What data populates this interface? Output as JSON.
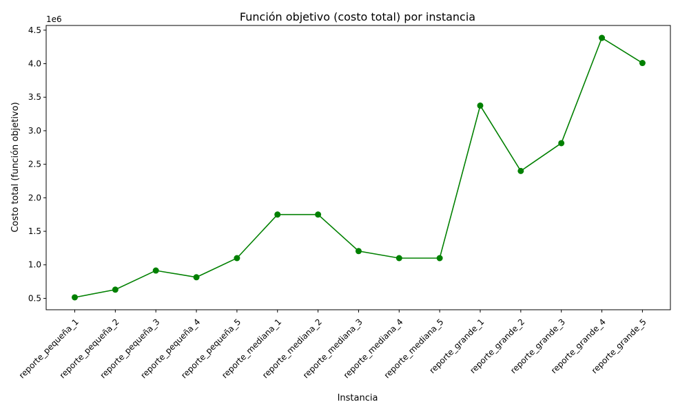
{
  "chart_data": {
    "type": "line",
    "title": "Función objetivo (costo total) por instancia",
    "xlabel": "Instancia",
    "ylabel": "Costo total (función objetivo)",
    "offset_label": "1e6",
    "categories": [
      "reporte_pequeña_1",
      "reporte_pequeña_2",
      "reporte_pequeña_3",
      "reporte_pequeña_4",
      "reporte_pequeña_5",
      "reporte_mediana_1",
      "reporte_mediana_2",
      "reporte_mediana_3",
      "reporte_mediana_4",
      "reporte_mediana_5",
      "reporte_grande_1",
      "reporte_grande_2",
      "reporte_grande_3",
      "reporte_grande_4",
      "reporte_grande_5"
    ],
    "values": [
      515000,
      630000,
      915000,
      815000,
      1100000,
      1750000,
      1750000,
      1205000,
      1100000,
      1100000,
      3375000,
      2400000,
      2815000,
      4385000,
      4010000
    ],
    "ylim": [
      330000,
      4570000
    ],
    "yticks": [
      0.5,
      1.0,
      1.5,
      2.0,
      2.5,
      3.0,
      3.5,
      4.0,
      4.5
    ],
    "ytick_labels": [
      "0.5",
      "1.0",
      "1.5",
      "2.0",
      "2.5",
      "3.0",
      "3.5",
      "4.0",
      "4.5"
    ],
    "grid": false,
    "legend": "none",
    "line_color": "#008000",
    "marker": "circle"
  }
}
